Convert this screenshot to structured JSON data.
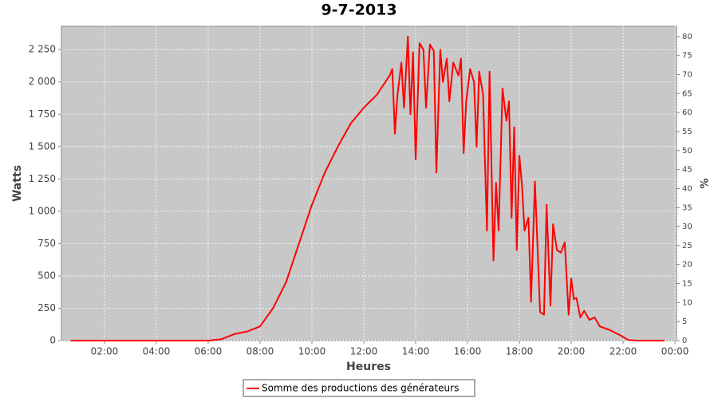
{
  "chart_data": {
    "type": "line",
    "title": "9-7-2013",
    "x_label": "Heures",
    "y_label": "Watts",
    "y2_label": "%",
    "x": [
      0.7,
      2,
      4,
      6,
      6.5,
      7,
      7.5,
      8,
      8.5,
      9,
      9.5,
      10,
      10.5,
      11,
      11.5,
      12,
      12.5,
      13,
      13.1,
      13.2,
      13.3,
      13.45,
      13.55,
      13.7,
      13.8,
      13.9,
      14.0,
      14.15,
      14.3,
      14.4,
      14.55,
      14.7,
      14.8,
      14.95,
      15.05,
      15.2,
      15.3,
      15.45,
      15.65,
      15.75,
      15.85,
      15.95,
      16.1,
      16.25,
      16.35,
      16.45,
      16.6,
      16.75,
      16.85,
      17.0,
      17.1,
      17.2,
      17.35,
      17.5,
      17.6,
      17.7,
      17.8,
      17.9,
      18.0,
      18.1,
      18.2,
      18.35,
      18.45,
      18.6,
      18.8,
      18.95,
      19.05,
      19.2,
      19.3,
      19.45,
      19.6,
      19.75,
      19.9,
      20.0,
      20.1,
      20.2,
      20.35,
      20.5,
      20.7,
      20.9,
      21.1,
      21.5,
      21.9,
      22.2,
      22.5,
      23,
      23.6
    ],
    "series": [
      {
        "name": "Somme des productions des  générateurs",
        "color": "#ff0000",
        "values": [
          0,
          0,
          0,
          0,
          10,
          50,
          70,
          110,
          250,
          450,
          750,
          1050,
          1300,
          1500,
          1680,
          1800,
          1900,
          2050,
          2100,
          1600,
          1900,
          2150,
          1800,
          2350,
          1750,
          2230,
          1400,
          2300,
          2250,
          1800,
          2290,
          2240,
          1300,
          2250,
          2000,
          2180,
          1850,
          2150,
          2050,
          2180,
          1450,
          1850,
          2100,
          2000,
          1500,
          2080,
          1900,
          850,
          2080,
          620,
          1220,
          850,
          1950,
          1700,
          1850,
          950,
          1650,
          700,
          1430,
          1200,
          850,
          950,
          300,
          1230,
          220,
          200,
          1050,
          270,
          900,
          700,
          680,
          760,
          200,
          480,
          320,
          330,
          180,
          230,
          160,
          180,
          110,
          80,
          40,
          5,
          0,
          0,
          0
        ]
      }
    ],
    "xlim": [
      0.34,
      24.06
    ],
    "xticks": [
      {
        "value": 2,
        "label": "02:00"
      },
      {
        "value": 4,
        "label": "04:00"
      },
      {
        "value": 6,
        "label": "06:00"
      },
      {
        "value": 8,
        "label": "08:00"
      },
      {
        "value": 10,
        "label": "10:00"
      },
      {
        "value": 12,
        "label": "12:00"
      },
      {
        "value": 14,
        "label": "14:00"
      },
      {
        "value": 16,
        "label": "16:00"
      },
      {
        "value": 18,
        "label": "18:00"
      },
      {
        "value": 20,
        "label": "20:00"
      },
      {
        "value": 22,
        "label": "22:00"
      },
      {
        "value": 24,
        "label": "00:00"
      }
    ],
    "ylim": [
      0,
      2430
    ],
    "yticks": [
      0,
      250,
      500,
      750,
      {
        "value": 1000,
        "label": "1 000"
      },
      {
        "value": 1250,
        "label": "1 250"
      },
      {
        "value": 1500,
        "label": "1 500"
      },
      {
        "value": 1750,
        "label": "1 750"
      },
      {
        "value": 2000,
        "label": "2 000"
      },
      {
        "value": 2250,
        "label": "2 250"
      }
    ],
    "y2lim": [
      0,
      82.7
    ],
    "y2ticks": [
      0,
      5,
      10,
      15,
      20,
      25,
      30,
      35,
      40,
      45,
      50,
      55,
      60,
      65,
      70,
      75,
      80
    ],
    "grid": true
  }
}
